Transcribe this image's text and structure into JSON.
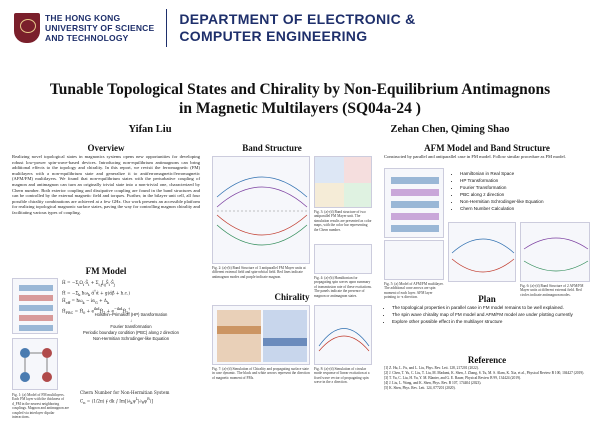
{
  "header": {
    "university_lines": [
      "THE HONG KONG",
      "UNIVERSITY OF SCIENCE",
      "AND TECHNOLOGY"
    ],
    "department_lines": [
      "DEPARTMENT OF ELECTRONIC &",
      "COMPUTER ENGINEERING"
    ]
  },
  "title_lines": [
    "Tunable Topological States and Chirality by Non-Equilibrium Antimagnons",
    "in Magnetic Multilayers (SQ04a-24 )"
  ],
  "authors_left": "Yifan Liu",
  "authors_right": "Zehan Chen, Qiming Shao",
  "sections": {
    "overview": "Overview",
    "fm_model": "FM Model",
    "band_structure": "Band Structure",
    "chirality": "Chirality",
    "afm_model": "AFM Model and Band Structure",
    "plan": "Plan",
    "reference": "Reference"
  },
  "overview_text": "Realizing novel topological states in magnonics systems opens new opportunities for developing robust low-power spin-wave-based devices. Introducing non-equilibrium antimagnons can bring additional effects to the topology and chirality. In this report, we revisit the ferromagnetic (FM) multilayers with a non-equilibrium state and generalize it to antiferromagnetic/ferromagnetic (AFM/FM) multilayers. We found that non-equilibrium states with the perturbative coupling of magnon and antimagnon can turn an originally trivial state into a non-trivial one, characterized by Chern number. Both exterior coupling and dissipative coupling are found in the band structures and can be controlled by the external magnetic field and torques. Further, in the bilayer unit cell, all four possible chirality combinations are achieved at a few GHz. Our work presents an accessible platform for realizing topological magnonic surface states, paving the way for controlling magnon chirality and facilitating various types of coupling.",
  "afm_intro": "Constructed by parallel and antiparallel case in FM model. Follow similar procedure as FM model.",
  "afm_steps": [
    "Hamiltonian in Real Space",
    "HP Transformation",
    "Fourier Transformation",
    "PBC along z direction",
    "Non-Hermitian Schrodinger-like Equation",
    "Chern Number Calculation"
  ],
  "fm_flow": [
    "Holstein–Primakoff (HP) transformation",
    "Fourier transformation",
    "Periodic boundary condition (PBC) along z direction",
    "Non-Hermitian Schrodinger-like Equation",
    "Chern Number for Non-Hermitian System"
  ],
  "plan_items": [
    "The topological properties in parallel case in FM model remains to be well explained.",
    "The spin wave chirality map of FM model and AFM/FM model are under plotting currently",
    "Explore other possible effect in the multilayer structure"
  ],
  "references": [
    "[1] Z. Hu, L. Fu, and L. Liu, Phys. Rev. Lett. 128, 217201 (2022).",
    "[2] J. Chen, T. Yu, C. Liu, T. Liu, M. Madami, K. Shen, J. Zhang, S. Tu, M. S. Alam, K. Xia, et al., Physical Review B 100, 104427 (2019).",
    "[3] T. Yu, C. Liu, H. Yu, Y. M. Blanter, and G. E. Bauer, Physical Review B 99, 134424 (2019).",
    "[4] J. Liu, L. Wang, and K. Shen, Phys. Rev. B 107, 174404 (2023).",
    "[5] K. Shen, Phys. Rev. Lett. 124, 077201 (2020)."
  ],
  "captions": {
    "fig1": "Fig. 1: (a) Model of FM multilayers. Each FM layer with the thickness of d_FM in the nearest neighboring couplings. Magnon and antimagnon are coupled via interlayer dipolar interactions.",
    "fig2": "Fig. 2: (a)-(b) Band Structure of 3 antiparallel FM Mayer units at different external field and spin-orbital field. Red lines indicate antimagnon modes and purple indicate magnon.",
    "fig3": "Fig. 3: (a)-(d) Band structure of two antiparallel FM Mayer unit. The simulation results are presented as color maps, with the color bar representing the Chern number.",
    "fig4": "Fig. 4: (a)-(b) Hamiltonian for propagating spin waves upon summary of transmission rate of these excitations. The panels indicate the presence of magnon or antimagnon states.",
    "fig5": "Fig. 5: (a) Model of AFM/FM multilayer. The additional cone arrows are spin moment of each layer. AFM layer pointing to -z direction.",
    "fig6": "Fig. 6: (a)-(d) Band Structure of 2 AFM/FM Mayer units at different external field. Red circles indicate antimagnon modes.",
    "fig7": "Fig. 7: (a)-(d) Simulation of Chirality and propagating surface state in case dynamic. The black and white arrows represent the direction of magnetic moment of FMs.",
    "fig8": "Fig. 8: (a)-(d) Simulation of circular mode response of linear excitation at a fixed wave vector of propagating spin wave in the z direction."
  },
  "chern_label": "Chern Number for Non-Hermitian System"
}
